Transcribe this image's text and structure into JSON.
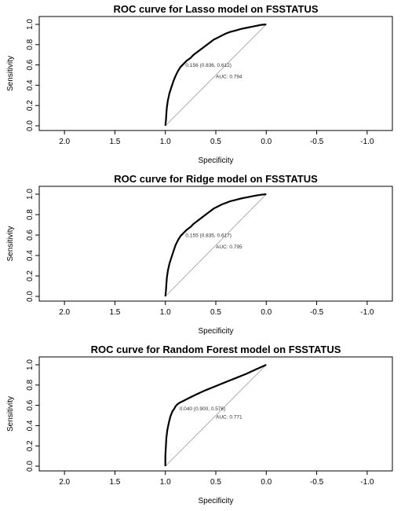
{
  "chart_data": [
    {
      "type": "line",
      "title": "ROC curve for Lasso model on FSSTATUS",
      "xlabel": "Specificity",
      "ylabel": "Sensitivity",
      "xlim": [
        2.25,
        -1.25
      ],
      "ylim": [
        0,
        1
      ],
      "x_reversed": true,
      "xticks": [
        "2.0",
        "1.5",
        "1.0",
        "0.5",
        "0.0",
        "-0.5",
        "-1.0"
      ],
      "xtick_values": [
        2.0,
        1.5,
        1.0,
        0.5,
        0.0,
        -0.5,
        -1.0
      ],
      "yticks": [
        "0.0",
        "0.2",
        "0.4",
        "0.6",
        "0.8",
        "1.0"
      ],
      "ytick_values": [
        0.0,
        0.2,
        0.4,
        0.6,
        0.8,
        1.0
      ],
      "diagonal": [
        [
          1.0,
          0.0
        ],
        [
          0.0,
          1.0
        ]
      ],
      "series": [
        {
          "specificity": [
            1.0,
            0.995,
            0.99,
            0.985,
            0.975,
            0.96,
            0.94,
            0.92,
            0.9,
            0.875,
            0.85,
            0.82,
            0.79,
            0.75,
            0.72,
            0.68,
            0.64,
            0.6,
            0.56,
            0.52,
            0.48,
            0.44,
            0.4,
            0.36,
            0.3,
            0.25,
            0.2,
            0.15,
            0.1,
            0.05,
            0.0
          ],
          "sensitivity": [
            0.0,
            0.05,
            0.12,
            0.18,
            0.25,
            0.32,
            0.38,
            0.44,
            0.49,
            0.54,
            0.58,
            0.61,
            0.64,
            0.67,
            0.7,
            0.73,
            0.76,
            0.79,
            0.82,
            0.85,
            0.87,
            0.89,
            0.91,
            0.925,
            0.94,
            0.955,
            0.965,
            0.975,
            0.985,
            0.995,
            1.0
          ]
        }
      ],
      "annotations": [
        {
          "text": "0.156 (0.836, 0.612)",
          "x": 0.8,
          "y": 0.58
        },
        {
          "text": "AUC: 0.794",
          "x": 0.5,
          "y": 0.47
        }
      ]
    },
    {
      "type": "line",
      "title": "ROC curve for Ridge model on FSSTATUS",
      "xlabel": "Specificity",
      "ylabel": "Sensitivity",
      "xlim": [
        2.25,
        -1.25
      ],
      "ylim": [
        0,
        1
      ],
      "x_reversed": true,
      "xticks": [
        "2.0",
        "1.5",
        "1.0",
        "0.5",
        "0.0",
        "-0.5",
        "-1.0"
      ],
      "xtick_values": [
        2.0,
        1.5,
        1.0,
        0.5,
        0.0,
        -0.5,
        -1.0
      ],
      "yticks": [
        "0.0",
        "0.2",
        "0.4",
        "0.6",
        "0.8",
        "1.0"
      ],
      "ytick_values": [
        0.0,
        0.2,
        0.4,
        0.6,
        0.8,
        1.0
      ],
      "diagonal": [
        [
          1.0,
          0.0
        ],
        [
          0.0,
          1.0
        ]
      ],
      "series": [
        {
          "specificity": [
            1.0,
            0.995,
            0.99,
            0.985,
            0.975,
            0.96,
            0.94,
            0.92,
            0.9,
            0.875,
            0.85,
            0.82,
            0.79,
            0.75,
            0.72,
            0.68,
            0.64,
            0.6,
            0.56,
            0.52,
            0.48,
            0.44,
            0.4,
            0.36,
            0.3,
            0.25,
            0.2,
            0.15,
            0.1,
            0.05,
            0.0
          ],
          "sensitivity": [
            0.0,
            0.05,
            0.12,
            0.18,
            0.25,
            0.32,
            0.38,
            0.44,
            0.5,
            0.55,
            0.59,
            0.62,
            0.65,
            0.68,
            0.71,
            0.74,
            0.77,
            0.8,
            0.83,
            0.86,
            0.88,
            0.9,
            0.915,
            0.93,
            0.945,
            0.958,
            0.968,
            0.978,
            0.987,
            0.995,
            1.0
          ]
        }
      ],
      "annotations": [
        {
          "text": "0.155 (0.835, 0.617)",
          "x": 0.8,
          "y": 0.58
        },
        {
          "text": "AUC: 0.795",
          "x": 0.5,
          "y": 0.47
        }
      ]
    },
    {
      "type": "line",
      "title": "ROC curve for Random Forest model on FSSTATUS",
      "xlabel": "Specificity",
      "ylabel": "Sensitivity",
      "xlim": [
        2.25,
        -1.25
      ],
      "ylim": [
        0,
        1
      ],
      "x_reversed": true,
      "xticks": [
        "2.0",
        "1.5",
        "1.0",
        "0.5",
        "0.0",
        "-0.5",
        "-1.0"
      ],
      "xtick_values": [
        2.0,
        1.5,
        1.0,
        0.5,
        0.0,
        -0.5,
        -1.0
      ],
      "yticks": [
        "0.0",
        "0.2",
        "0.4",
        "0.6",
        "0.8",
        "1.0"
      ],
      "ytick_values": [
        0.0,
        0.2,
        0.4,
        0.6,
        0.8,
        1.0
      ],
      "diagonal": [
        [
          1.0,
          0.0
        ],
        [
          0.0,
          1.0
        ]
      ],
      "series": [
        {
          "specificity": [
            1.0,
            1.0,
            0.995,
            0.99,
            0.98,
            0.965,
            0.95,
            0.93,
            0.91,
            0.9,
            0.88,
            0.86,
            0.84,
            0.82,
            0.8,
            0.76,
            0.7,
            0.6,
            0.5,
            0.4,
            0.3,
            0.2,
            0.1,
            0.0
          ],
          "sensitivity": [
            0.0,
            0.1,
            0.2,
            0.28,
            0.36,
            0.43,
            0.49,
            0.54,
            0.57,
            0.59,
            0.61,
            0.625,
            0.635,
            0.645,
            0.655,
            0.675,
            0.705,
            0.75,
            0.79,
            0.83,
            0.87,
            0.91,
            0.955,
            1.0
          ]
        }
      ],
      "annotations": [
        {
          "text": "0.040 (0.900, 0.576)",
          "x": 0.86,
          "y": 0.55
        },
        {
          "text": "AUC: 0.771",
          "x": 0.5,
          "y": 0.47
        }
      ]
    }
  ]
}
